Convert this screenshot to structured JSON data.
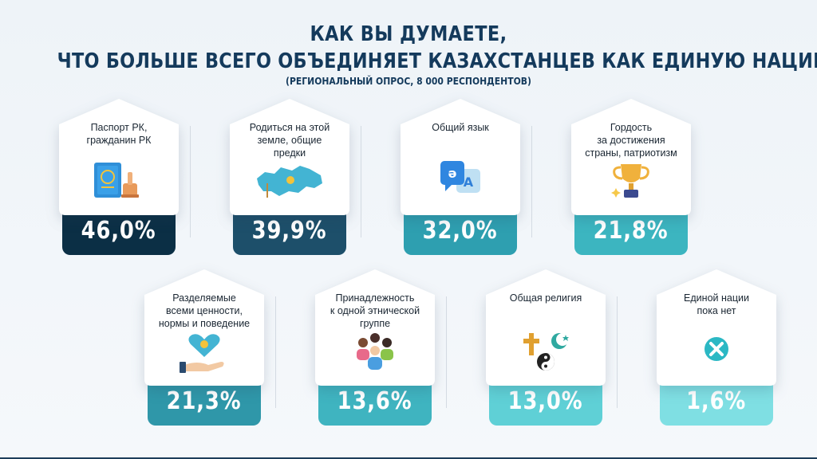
{
  "header": {
    "title_line1": "КАК ВЫ ДУМАЕТЕ,",
    "title_line2": "ЧТО БОЛЬШЕ ВСЕГО ОБЪЕДИНЯЕТ КАЗАХСТАНЦЕВ КАК ЕДИНУЮ НАЦИЮ?",
    "subtitle": "(РЕГИОНАЛЬНЫЙ ОПРОС,  8 000 РЕСПОНДЕНТОВ)"
  },
  "colors": {
    "title": "#143a5c",
    "bar_1": "#0b2f45",
    "bar_2": "#1d4f6a",
    "bar_3": "#2e9fb0",
    "bar_4": "#3cb5c0",
    "bar_5": "#2f97a9",
    "bar_6": "#3fb4c0",
    "bar_7": "#5fd0d6",
    "bar_8": "#7fdfe3"
  },
  "cards": [
    {
      "label_lines": [
        "Паспорт РК,",
        "гражданин РК",
        ""
      ],
      "value": "46,0%",
      "icon": "passport-icon"
    },
    {
      "label_lines": [
        "Родиться на этой",
        "земле, общие",
        "предки"
      ],
      "value": "39,9%",
      "icon": "kazakhstan-map-icon"
    },
    {
      "label_lines": [
        "Общий язык",
        "",
        ""
      ],
      "value": "32,0%",
      "icon": "language-bubbles-icon"
    },
    {
      "label_lines": [
        "Гордость",
        "за достижения",
        "страны, патриотизм"
      ],
      "value": "21,8%",
      "icon": "trophy-icon"
    },
    {
      "label_lines": [
        "Разделяемые",
        "всеми ценности,",
        "нормы и поведение"
      ],
      "value": "21,3%",
      "icon": "heart-hand-icon"
    },
    {
      "label_lines": [
        "Принадлежность",
        "к одной этнической",
        "группе"
      ],
      "value": "13,6%",
      "icon": "people-group-icon"
    },
    {
      "label_lines": [
        "Общая религия",
        "",
        ""
      ],
      "value": "13,0%",
      "icon": "religion-symbols-icon"
    },
    {
      "label_lines": [
        "Единой нации",
        "пока нет",
        ""
      ],
      "value": "1,6%",
      "icon": "cross-circle-icon"
    }
  ]
}
